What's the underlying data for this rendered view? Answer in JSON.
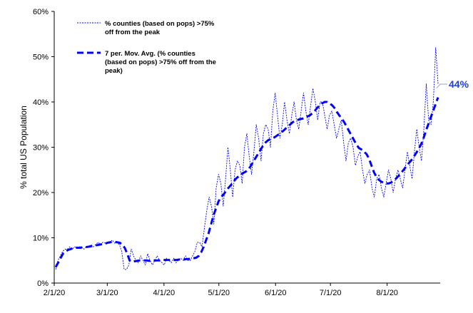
{
  "chart_data": {
    "type": "line",
    "title": "",
    "xlabel": "",
    "ylabel": "% total US Population",
    "ylim": [
      0,
      60
    ],
    "y_ticks": [
      "0%",
      "10%",
      "20%",
      "30%",
      "40%",
      "50%",
      "60%"
    ],
    "x_ticks": [
      "2/1/20",
      "3/1/20",
      "4/1/20",
      "5/1/20",
      "6/1/20",
      "7/1/20",
      "8/1/20"
    ],
    "x_start": "2/1/20",
    "x_end": "8/30/20",
    "grid": false,
    "legend_position": "top-left",
    "series": [
      {
        "name": "% counties (based on pops) >75% off from the peak",
        "legend_lines": [
          "% counties (based on pops) >75%",
          "off from the peak"
        ],
        "style": "thin-dotted",
        "color": "#0000ff",
        "values": [
          3,
          5,
          6,
          7,
          7.5,
          7.5,
          8,
          7.5,
          8,
          7.8,
          8,
          8,
          7.5,
          8,
          8,
          8.5,
          8,
          8.5,
          9,
          8.5,
          9,
          8.8,
          9,
          9,
          9.5,
          8.8,
          9,
          8.5,
          7,
          3,
          3,
          4,
          7.5,
          6,
          5,
          4.5,
          6,
          5,
          4,
          6.5,
          5,
          4,
          5,
          6,
          5,
          4.5,
          4,
          5.5,
          5,
          4.5,
          5.5,
          4.5,
          5,
          5.5,
          5,
          6,
          5,
          5,
          6,
          7,
          9,
          9,
          8,
          12,
          16,
          19,
          17,
          13,
          21,
          24,
          22,
          17,
          23,
          30,
          25,
          19,
          25,
          27,
          26,
          22,
          30,
          33,
          28,
          24,
          29,
          35,
          32,
          27,
          33,
          35,
          34,
          30,
          38,
          42,
          37,
          32,
          35,
          40,
          36,
          33,
          37,
          40,
          36,
          34,
          38,
          42,
          38,
          35,
          39,
          43,
          40,
          36,
          40,
          40,
          37,
          34,
          37,
          38,
          35,
          32,
          34,
          36,
          31,
          27,
          31,
          32,
          30,
          26,
          28,
          29,
          25,
          22,
          24,
          25,
          21,
          19,
          23,
          24,
          21,
          19,
          22,
          25,
          23,
          20,
          23,
          25,
          23,
          21,
          25,
          29,
          26,
          23,
          29,
          34,
          30,
          27,
          34,
          44,
          36,
          35,
          40,
          52,
          44
        ]
      },
      {
        "name": "7 per. Mov. Avg. (% counties (based on pops) >75% off from the peak)",
        "legend_lines": [
          "7 per. Mov. Avg. (% counties",
          "(based on pops) >75% off from the",
          "peak)"
        ],
        "style": "thick-dashed",
        "color": "#0000ff",
        "values": [
          3.5,
          4.5,
          5.5,
          6.5,
          7,
          7.3,
          7.5,
          7.7,
          7.8,
          7.8,
          7.8,
          7.9,
          7.9,
          8,
          8.1,
          8.2,
          8.3,
          8.4,
          8.5,
          8.6,
          8.7,
          8.9,
          9,
          9.1,
          9.1,
          9,
          8.9,
          8.5,
          7.8,
          6.5,
          5,
          4.7,
          4.8,
          4.9,
          5,
          5,
          5,
          5,
          4.9,
          5,
          5,
          5,
          5,
          5.1,
          5.1,
          5.1,
          5.1,
          5.1,
          5.1,
          5.1,
          5.2,
          5.2,
          5.2,
          5.3,
          5.3,
          5.4,
          5.5,
          5.6,
          6,
          6.8,
          8,
          9.5,
          11,
          13,
          15,
          16.5,
          18,
          19,
          19.5,
          20.3,
          21,
          21.6,
          22.3,
          23,
          23.5,
          24,
          24.3,
          24.6,
          25,
          25.8,
          26.7,
          27.6,
          28.5,
          29.4,
          30.3,
          31,
          31.5,
          31.8,
          32,
          32.3,
          32.7,
          33,
          33.5,
          34,
          34.5,
          35,
          35.5,
          35.8,
          36,
          36.2,
          36.3,
          36.5,
          36.8,
          37,
          37.5,
          38,
          38.7,
          39.2,
          39.7,
          40,
          40,
          39.7,
          39.3,
          38.7,
          37.8,
          37,
          36.3,
          35.5,
          34.5,
          33.5,
          32.5,
          31.5,
          30.5,
          29.8,
          29.5,
          29,
          28.5,
          27.5,
          26,
          24.5,
          23.5,
          22.8,
          22.4,
          22.1,
          22,
          22,
          22.2,
          22.6,
          23.1,
          23.7,
          24.3,
          25,
          25.7,
          26.4,
          27,
          27.8,
          28.6,
          29.5,
          30.5,
          31.8,
          33.5,
          35,
          36.5,
          38,
          39.5,
          41
        ]
      }
    ],
    "annotation": {
      "text": "44%",
      "color": "#1f3fd0"
    }
  }
}
